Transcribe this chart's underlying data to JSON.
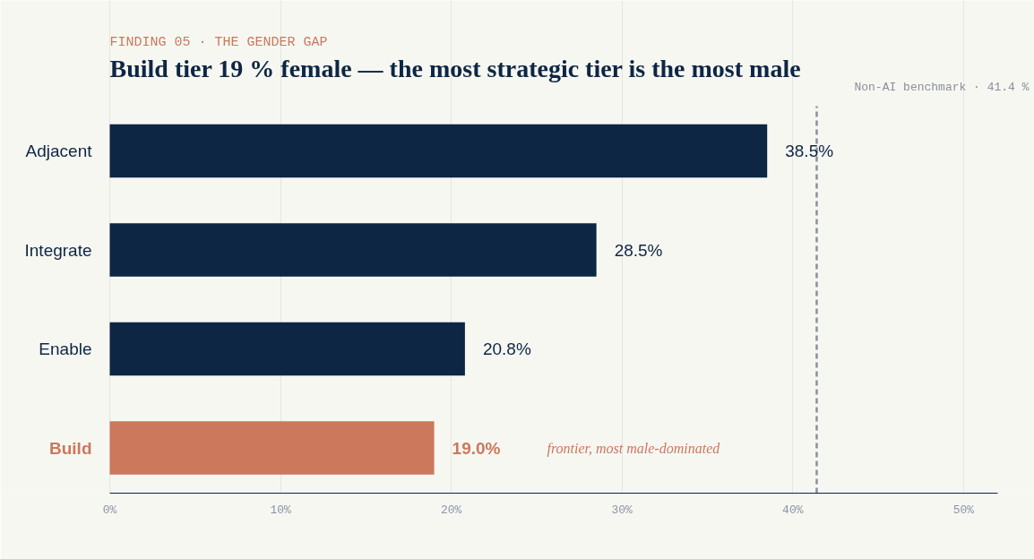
{
  "chart_data": {
    "type": "bar",
    "orientation": "horizontal",
    "subtitle": "FINDING 05 · THE GENDER GAP",
    "title": "Build tier 19 % female — the most strategic tier is the most male",
    "categories": [
      "Adjacent",
      "Integrate",
      "Enable",
      "Build"
    ],
    "values": [
      38.5,
      28.5,
      20.8,
      19.0
    ],
    "colors": [
      "#0d2644",
      "#0d2644",
      "#0d2644",
      "#cc785c"
    ],
    "value_labels": [
      "38.5%",
      "28.5%",
      "20.8%",
      "19.0%"
    ],
    "xlim": [
      0,
      52
    ],
    "xticks": [
      {
        "value": 0,
        "label": "0%"
      },
      {
        "value": 10,
        "label": "10%"
      },
      {
        "value": 20,
        "label": "20%"
      },
      {
        "value": 30,
        "label": "30%"
      },
      {
        "value": 40,
        "label": "40%"
      },
      {
        "value": 50,
        "label": "50%"
      }
    ],
    "ref_lines": [
      {
        "axis": "x",
        "value": 41.4,
        "label": "Non-AI benchmark · 41.4 %",
        "color": "#8a8f99",
        "line_style": "dashed"
      }
    ],
    "annotations": [
      "frontier, most male-dominated"
    ],
    "grid": "x"
  }
}
